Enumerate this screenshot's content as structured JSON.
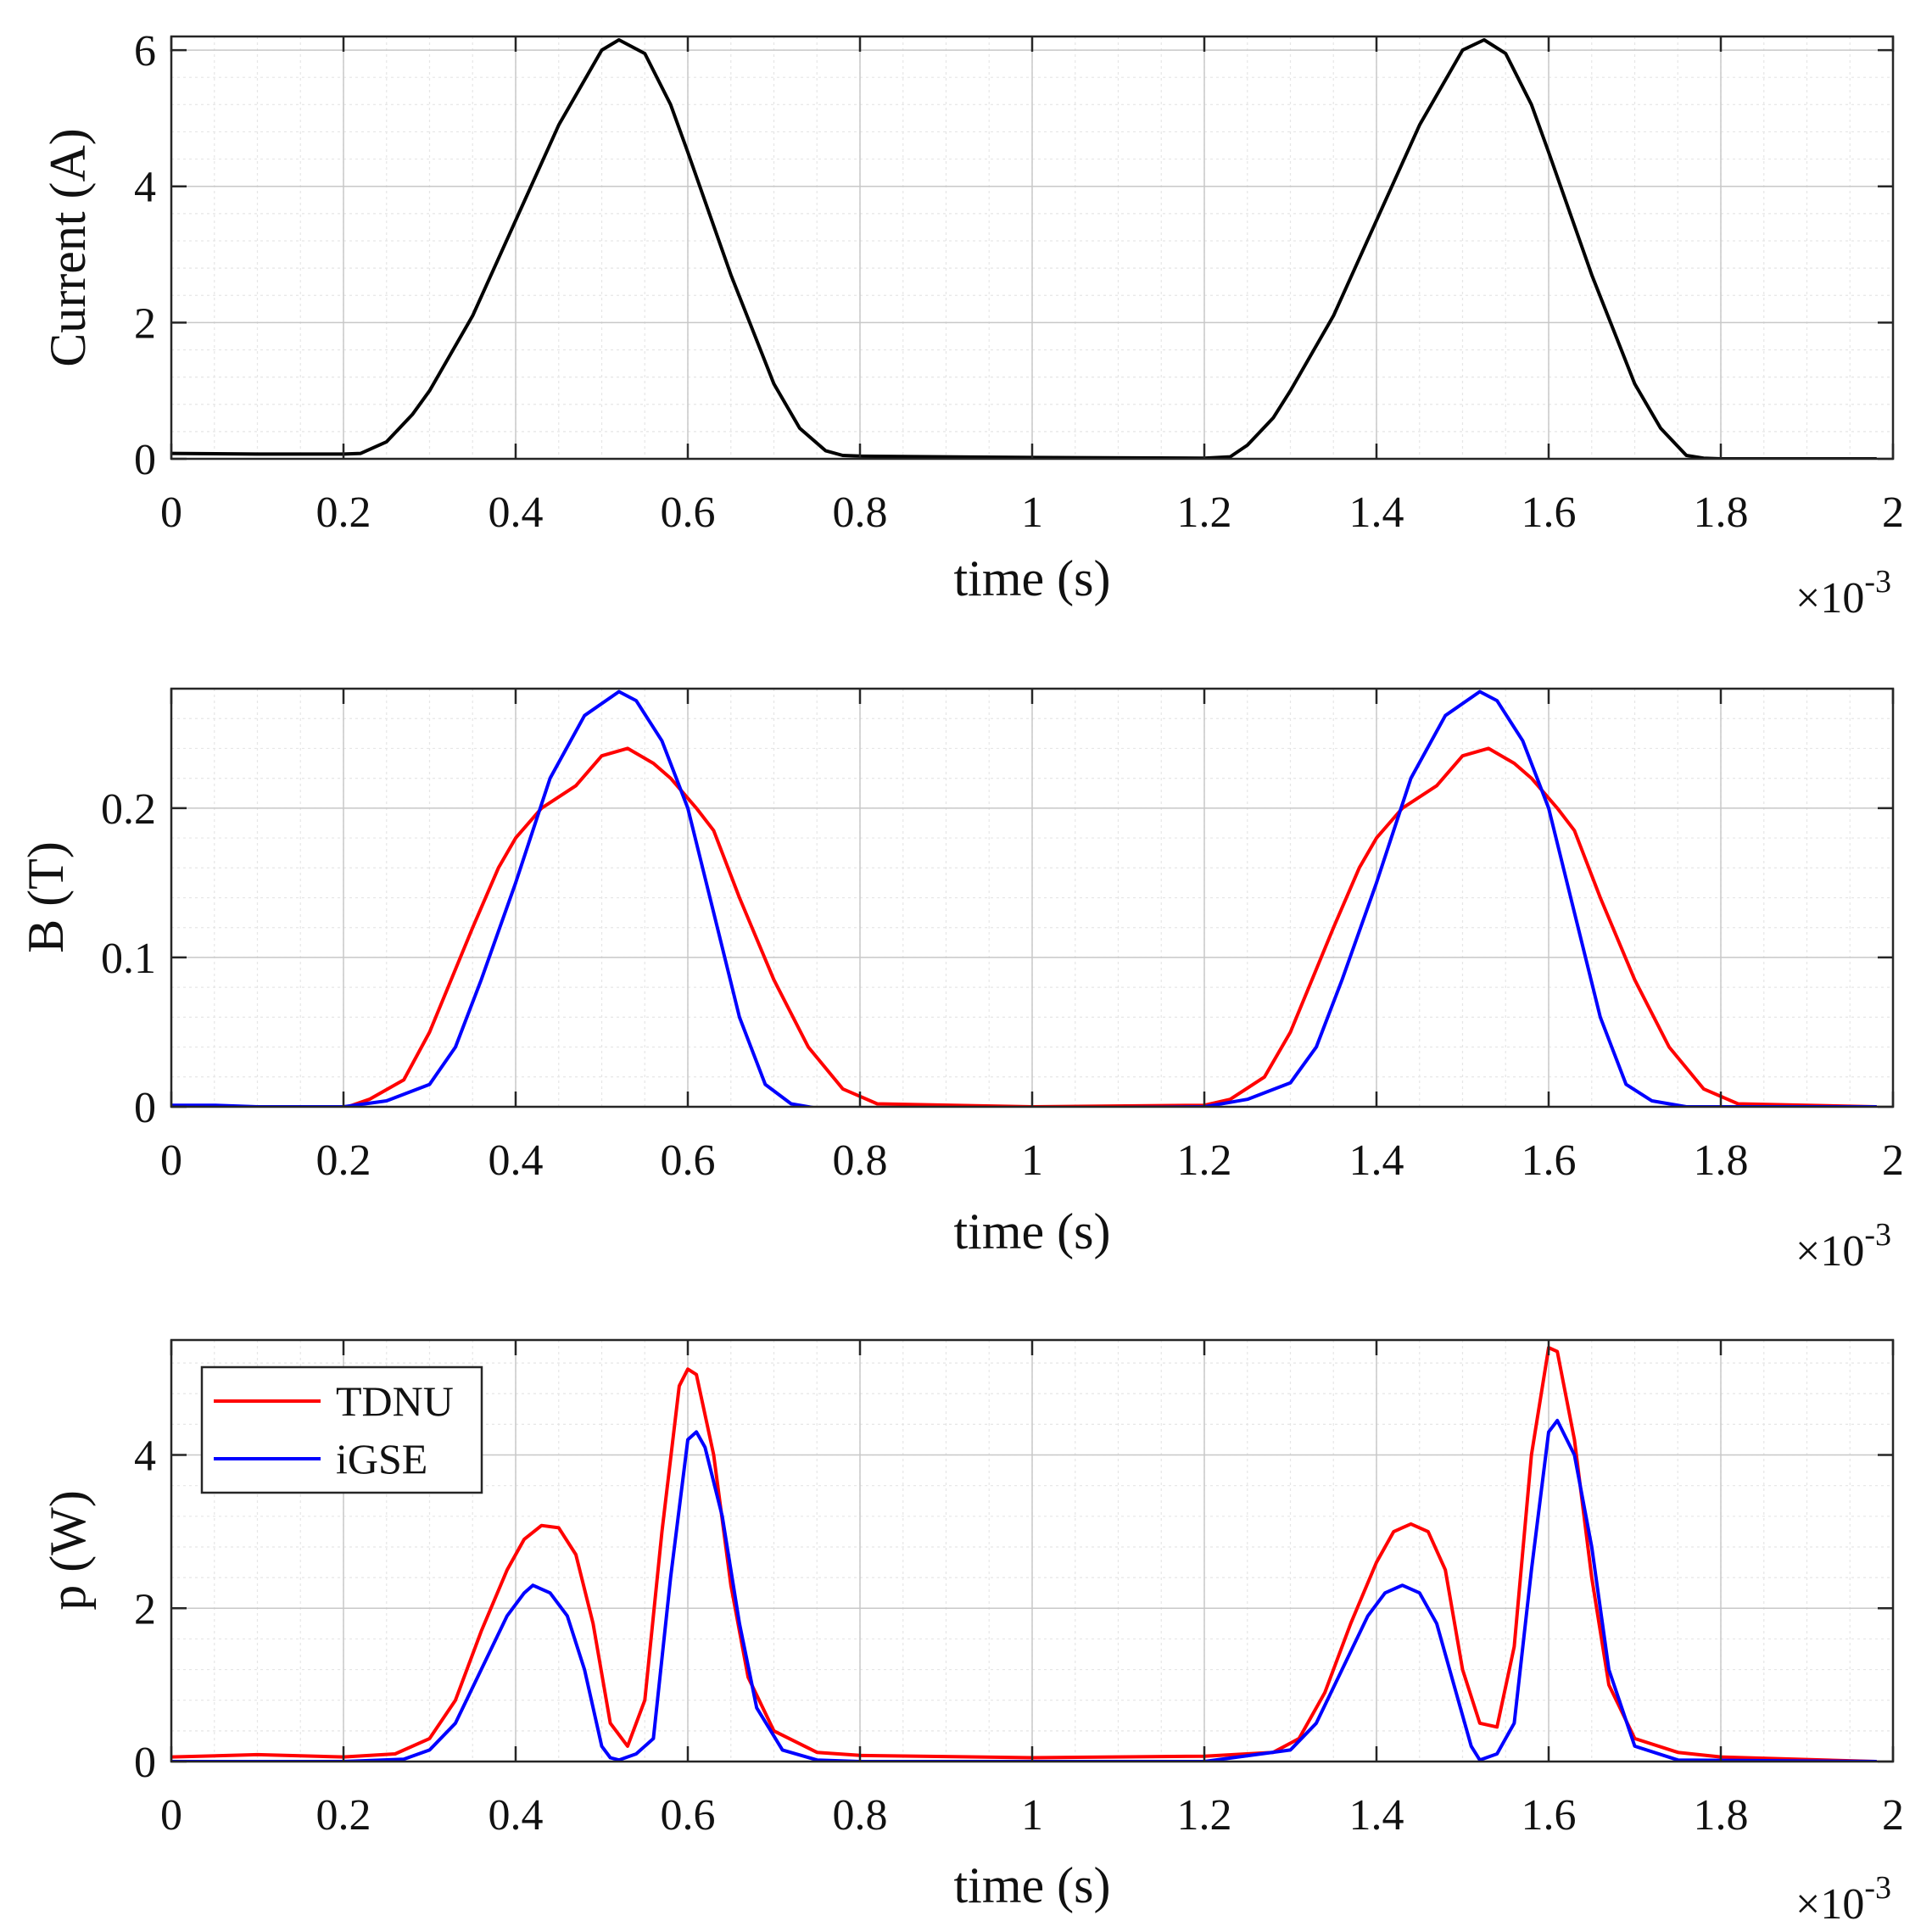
{
  "colors": {
    "current": "#000000",
    "tdnu": "#ff0000",
    "igse": "#0000ff",
    "axes": "#262626",
    "grid_major": "#c8c8c8",
    "grid_minor": "#e6e6e6"
  },
  "chart_data": [
    {
      "id": "current",
      "type": "line",
      "title": "",
      "xlabel": "time (s)",
      "ylabel": "Current (A)",
      "x_multiplier_label": "×10",
      "x_multiplier_exp": "-3",
      "xlim": [
        0,
        2
      ],
      "ylim": [
        0,
        6.2
      ],
      "x_ticks": [
        0,
        0.2,
        0.4,
        0.6,
        0.8,
        1,
        1.2,
        1.4,
        1.6,
        1.8,
        2
      ],
      "x_tick_labels": [
        "0",
        "0.2",
        "0.4",
        "0.6",
        "0.8",
        "1",
        "1.2",
        "1.4",
        "1.6",
        "1.8",
        "2"
      ],
      "y_ticks": [
        0,
        2,
        4,
        6
      ],
      "y_tick_labels": [
        "0",
        "2",
        "4",
        "6"
      ],
      "grid": true,
      "legend": null,
      "series": [
        {
          "name": "Current",
          "color_key": "current",
          "x": [
            0,
            0.1,
            0.2,
            0.22,
            0.25,
            0.28,
            0.3,
            0.35,
            0.4,
            0.45,
            0.5,
            0.52,
            0.55,
            0.58,
            0.6,
            0.65,
            0.7,
            0.73,
            0.76,
            0.78,
            0.8,
            1.0,
            1.2,
            1.23,
            1.25,
            1.28,
            1.3,
            1.35,
            1.4,
            1.45,
            1.5,
            1.525,
            1.55,
            1.58,
            1.6,
            1.65,
            1.7,
            1.73,
            1.76,
            1.78,
            1.8,
            1.98
          ],
          "y": [
            0.08,
            0.07,
            0.07,
            0.08,
            0.25,
            0.65,
            1.0,
            2.1,
            3.5,
            4.9,
            6.0,
            6.15,
            5.95,
            5.2,
            4.5,
            2.7,
            1.1,
            0.45,
            0.12,
            0.05,
            0.04,
            0.02,
            0.01,
            0.03,
            0.2,
            0.6,
            1.0,
            2.1,
            3.5,
            4.9,
            6.0,
            6.15,
            5.95,
            5.2,
            4.5,
            2.7,
            1.1,
            0.45,
            0.05,
            0.01,
            0.0,
            0.0
          ]
        }
      ]
    },
    {
      "id": "flux",
      "type": "line",
      "title": "",
      "xlabel": "time (s)",
      "ylabel": "B (T)",
      "x_multiplier_label": "×10",
      "x_multiplier_exp": "-3",
      "xlim": [
        0,
        2
      ],
      "ylim": [
        0,
        0.28
      ],
      "x_ticks": [
        0,
        0.2,
        0.4,
        0.6,
        0.8,
        1,
        1.2,
        1.4,
        1.6,
        1.8,
        2
      ],
      "x_tick_labels": [
        "0",
        "0.2",
        "0.4",
        "0.6",
        "0.8",
        "1",
        "1.2",
        "1.4",
        "1.6",
        "1.8",
        "2"
      ],
      "y_ticks": [
        0,
        0.1,
        0.2
      ],
      "y_tick_labels": [
        "0",
        "0.1",
        "0.2"
      ],
      "grid": true,
      "legend": null,
      "series": [
        {
          "name": "TDNU",
          "color_key": "tdnu",
          "x": [
            0,
            0.1,
            0.2,
            0.23,
            0.27,
            0.3,
            0.35,
            0.38,
            0.4,
            0.43,
            0.47,
            0.5,
            0.53,
            0.56,
            0.58,
            0.61,
            0.63,
            0.66,
            0.7,
            0.74,
            0.78,
            0.82,
            1.0,
            1.2,
            1.23,
            1.27,
            1.3,
            1.35,
            1.38,
            1.4,
            1.43,
            1.47,
            1.5,
            1.53,
            1.56,
            1.58,
            1.61,
            1.63,
            1.66,
            1.7,
            1.74,
            1.78,
            1.82,
            1.98
          ],
          "y": [
            -0.002,
            -0.002,
            -0.001,
            0.005,
            0.018,
            0.05,
            0.12,
            0.16,
            0.18,
            0.2,
            0.215,
            0.235,
            0.24,
            0.23,
            0.22,
            0.2,
            0.185,
            0.14,
            0.085,
            0.04,
            0.012,
            0.002,
            0.0,
            0.001,
            0.005,
            0.02,
            0.05,
            0.12,
            0.16,
            0.18,
            0.2,
            0.215,
            0.235,
            0.24,
            0.23,
            0.22,
            0.2,
            0.185,
            0.14,
            0.085,
            0.04,
            0.012,
            0.002,
            0.0
          ]
        },
        {
          "name": "iGSE",
          "color_key": "igse",
          "x": [
            0,
            0.05,
            0.1,
            0.2,
            0.25,
            0.3,
            0.33,
            0.36,
            0.4,
            0.44,
            0.48,
            0.52,
            0.54,
            0.57,
            0.6,
            0.63,
            0.66,
            0.69,
            0.72,
            0.76,
            0.8,
            1.0,
            1.2,
            1.25,
            1.3,
            1.33,
            1.36,
            1.4,
            1.44,
            1.48,
            1.52,
            1.54,
            1.57,
            1.6,
            1.63,
            1.66,
            1.69,
            1.72,
            1.76,
            1.8,
            1.98
          ],
          "y": [
            0.001,
            0.001,
            0.0,
            0.0,
            0.004,
            0.015,
            0.04,
            0.085,
            0.15,
            0.22,
            0.262,
            0.278,
            0.272,
            0.245,
            0.2,
            0.13,
            0.06,
            0.015,
            0.002,
            -0.002,
            -0.003,
            -0.001,
            0.0,
            0.005,
            0.016,
            0.04,
            0.085,
            0.15,
            0.22,
            0.262,
            0.278,
            0.272,
            0.245,
            0.2,
            0.13,
            0.06,
            0.015,
            0.004,
            0.0,
            0.0,
            0.0
          ]
        }
      ]
    },
    {
      "id": "power",
      "type": "line",
      "title": "",
      "xlabel": "time (s)",
      "ylabel": "p (W)",
      "x_multiplier_label": "×10",
      "x_multiplier_exp": "-3",
      "xlim": [
        0,
        2
      ],
      "ylim": [
        0,
        5.5
      ],
      "x_ticks": [
        0,
        0.2,
        0.4,
        0.6,
        0.8,
        1,
        1.2,
        1.4,
        1.6,
        1.8,
        2
      ],
      "x_tick_labels": [
        "0",
        "0.2",
        "0.4",
        "0.6",
        "0.8",
        "1",
        "1.2",
        "1.4",
        "1.6",
        "1.8",
        "2"
      ],
      "y_ticks": [
        0,
        2,
        4
      ],
      "y_tick_labels": [
        "0",
        "2",
        "4"
      ],
      "grid": true,
      "legend": {
        "placement": "top-left",
        "entries": [
          "TDNU",
          "iGSE"
        ]
      },
      "series": [
        {
          "name": "TDNU",
          "color_key": "tdnu",
          "x": [
            0,
            0.1,
            0.2,
            0.26,
            0.3,
            0.33,
            0.36,
            0.39,
            0.41,
            0.43,
            0.45,
            0.47,
            0.49,
            0.51,
            0.53,
            0.55,
            0.57,
            0.59,
            0.6,
            0.61,
            0.63,
            0.65,
            0.67,
            0.7,
            0.75,
            0.8,
            1.0,
            1.2,
            1.28,
            1.31,
            1.34,
            1.37,
            1.4,
            1.42,
            1.44,
            1.46,
            1.48,
            1.5,
            1.52,
            1.54,
            1.56,
            1.58,
            1.6,
            1.61,
            1.63,
            1.65,
            1.67,
            1.7,
            1.75,
            1.8,
            1.98
          ],
          "y": [
            0.06,
            0.09,
            0.06,
            0.1,
            0.3,
            0.8,
            1.7,
            2.5,
            2.9,
            3.08,
            3.05,
            2.7,
            1.8,
            0.5,
            0.2,
            0.8,
            3.0,
            4.9,
            5.12,
            5.05,
            4.0,
            2.3,
            1.1,
            0.4,
            0.12,
            0.08,
            0.05,
            0.07,
            0.12,
            0.3,
            0.9,
            1.8,
            2.6,
            3.0,
            3.1,
            3.0,
            2.5,
            1.2,
            0.5,
            0.45,
            1.5,
            4.0,
            5.4,
            5.35,
            4.2,
            2.4,
            1.0,
            0.3,
            0.12,
            0.06,
            0.0
          ]
        },
        {
          "name": "iGSE",
          "color_key": "igse",
          "x": [
            0,
            0.1,
            0.2,
            0.27,
            0.3,
            0.33,
            0.36,
            0.39,
            0.41,
            0.42,
            0.44,
            0.46,
            0.48,
            0.5,
            0.51,
            0.52,
            0.54,
            0.56,
            0.58,
            0.6,
            0.61,
            0.62,
            0.64,
            0.66,
            0.68,
            0.71,
            0.75,
            0.8,
            1.0,
            1.2,
            1.3,
            1.33,
            1.36,
            1.39,
            1.41,
            1.43,
            1.45,
            1.47,
            1.49,
            1.51,
            1.52,
            1.54,
            1.56,
            1.58,
            1.6,
            1.61,
            1.63,
            1.65,
            1.67,
            1.7,
            1.75,
            1.98
          ],
          "y": [
            0.0,
            0.0,
            0.0,
            0.03,
            0.15,
            0.5,
            1.2,
            1.9,
            2.2,
            2.3,
            2.2,
            1.9,
            1.2,
            0.2,
            0.05,
            0.02,
            0.1,
            0.3,
            2.4,
            4.2,
            4.3,
            4.1,
            3.2,
            1.8,
            0.7,
            0.15,
            0.02,
            0.0,
            0.0,
            0.0,
            0.15,
            0.5,
            1.2,
            1.9,
            2.2,
            2.3,
            2.2,
            1.8,
            1.0,
            0.2,
            0.02,
            0.1,
            0.5,
            2.5,
            4.3,
            4.45,
            4.0,
            2.8,
            1.2,
            0.2,
            0.02,
            0.0
          ]
        }
      ]
    }
  ]
}
